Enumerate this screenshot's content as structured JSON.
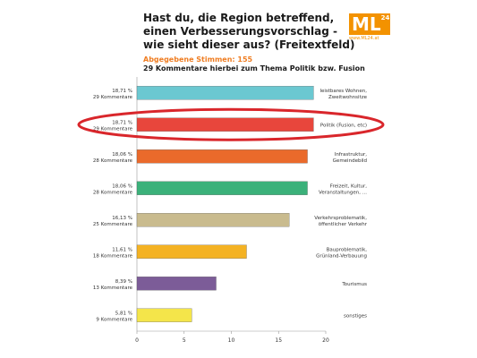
{
  "header": {
    "title": "Hast du, die Region betreffend, einen Verbesserungsvorschlag - wie sieht dieser aus? (Freitextfeld)",
    "votes": "Abgegebene Stimmen: 155",
    "note": "29 Kommentare hierbei zum Thema Politik bzw. Fusion"
  },
  "logo": {
    "text": "ML",
    "sup": "24",
    "url": "www.ML24.at"
  },
  "chart_data": {
    "type": "bar",
    "orientation": "horizontal",
    "xlim": [
      0,
      20
    ],
    "xticks": [
      "0",
      "5",
      "10",
      "15",
      "20"
    ],
    "highlighted": "Politik (Fusion, etc)",
    "bars": [
      {
        "pct": "18,71 %",
        "comments": "29 Kommentare",
        "label": [
          "leistbares Wohnen,",
          "Zweitwohnsitze"
        ],
        "value": 18.71,
        "color": "#6bc8d1"
      },
      {
        "pct": "18,71 %",
        "comments": "29 Kommentare",
        "label": [
          "Politik (Fusion, etc)"
        ],
        "value": 18.71,
        "color": "#e8463c"
      },
      {
        "pct": "18,06 %",
        "comments": "28 Kommentare",
        "label": [
          "Infrastruktur,",
          "Gemeindebild"
        ],
        "value": 18.06,
        "color": "#ea6a2b"
      },
      {
        "pct": "18,06 %",
        "comments": "28 Kommentare",
        "label": [
          "Freizeit, Kultur,",
          "Veranstaltungen, ..."
        ],
        "value": 18.06,
        "color": "#3bb17a"
      },
      {
        "pct": "16,13 %",
        "comments": "25 Kommentare",
        "label": [
          "Verkehrsproblematik,",
          "öffentlicher Verkehr"
        ],
        "value": 16.13,
        "color": "#c9bb8e"
      },
      {
        "pct": "11,61 %",
        "comments": "18 Kommentare",
        "label": [
          "Bauproblematik,",
          "Grünland-Verbauung"
        ],
        "value": 11.61,
        "color": "#f4b223"
      },
      {
        "pct": "8,39 %",
        "comments": "13 Kommentare",
        "label": [
          "Tourismus"
        ],
        "value": 8.39,
        "color": "#7c5c98"
      },
      {
        "pct": "5,81 %",
        "comments": "9 Kommentare",
        "label": [
          "sonstiges"
        ],
        "value": 5.81,
        "color": "#f4e54a"
      }
    ]
  }
}
